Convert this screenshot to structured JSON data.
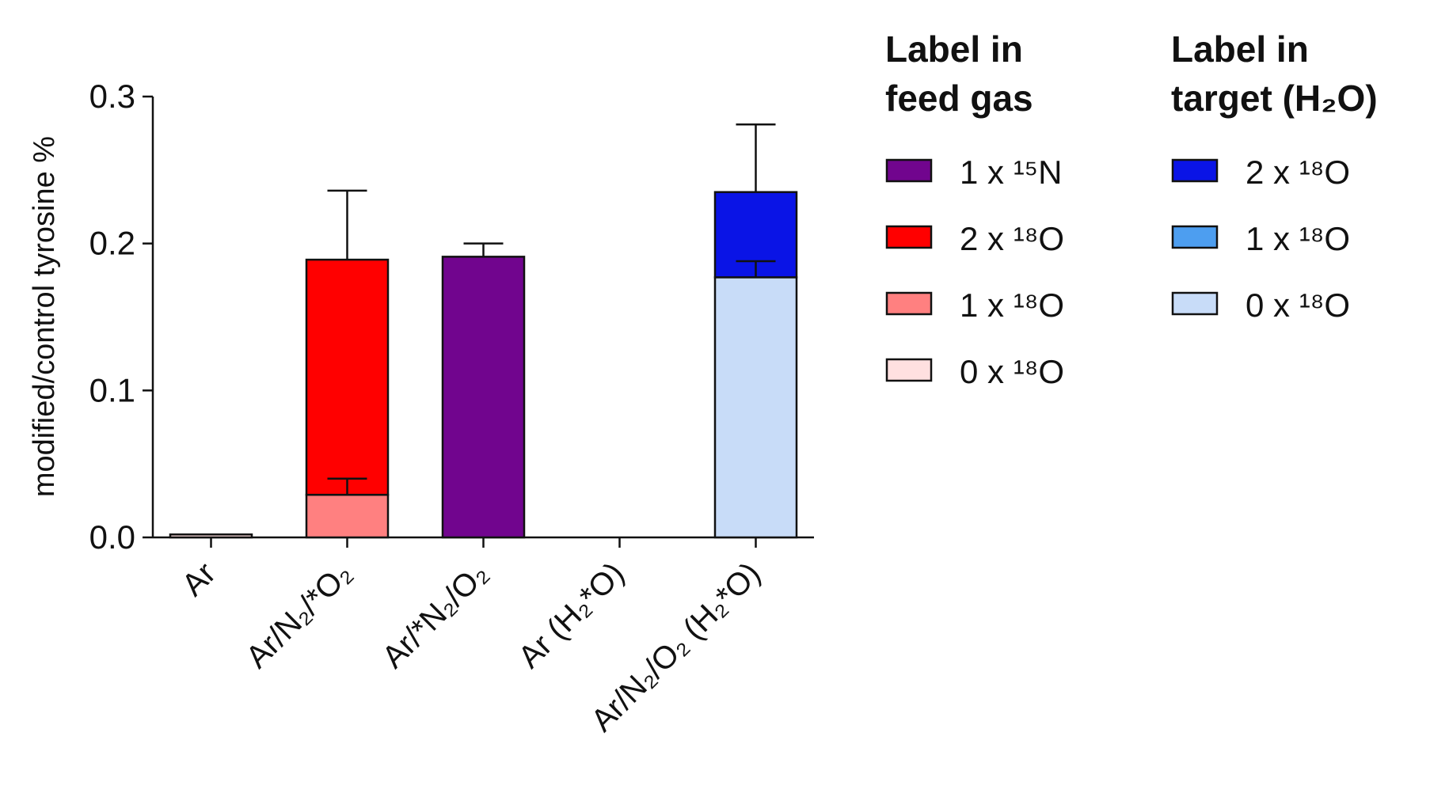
{
  "chart_data": {
    "type": "bar",
    "stacked": true,
    "ylabel": "modified/control tyrosine %",
    "ylim": [
      0,
      0.3
    ],
    "yticks": [
      "0.0",
      "0.1",
      "0.2",
      "0.3"
    ],
    "categories": [
      "Ar",
      "Ar/N₂/*O₂",
      "Ar/*N₂/O₂",
      "Ar (H₂*O)",
      "Ar/N₂/O₂ (H₂*O)"
    ],
    "series": [
      {
        "name": "1 x ¹⁵N",
        "color": "#71058e",
        "values": [
          0,
          0,
          0.191,
          0,
          0
        ],
        "error": [
          0,
          0,
          0.009,
          0,
          0
        ]
      },
      {
        "name": "2 x ¹⁸O",
        "color": "#ff0000",
        "values": [
          0,
          0.16,
          0,
          0,
          0
        ],
        "error": [
          0,
          0.047,
          0,
          0,
          0
        ]
      },
      {
        "name": "1 x ¹⁸O",
        "color": "#ff8080",
        "values": [
          0,
          0.029,
          0,
          0,
          0
        ],
        "error": [
          0,
          0.011,
          0,
          0,
          0
        ]
      },
      {
        "name": "0 x ¹⁸O",
        "color": "#ffe0e0",
        "values": [
          0.002,
          0,
          0,
          0,
          0
        ],
        "error": [
          0,
          0,
          0,
          0,
          0
        ]
      },
      {
        "name": "2 x ¹⁸O",
        "color": "#0a14e6",
        "values": [
          0,
          0,
          0,
          0,
          0.058
        ],
        "error": [
          0,
          0,
          0,
          0,
          0.046
        ]
      },
      {
        "name": "1 x ¹⁸O",
        "color": "#4d9ef0",
        "values": [
          0,
          0,
          0,
          0,
          0
        ],
        "error": [
          0,
          0,
          0,
          0,
          0
        ]
      },
      {
        "name": "0 x ¹⁸O",
        "color": "#c8dcf8",
        "values": [
          0,
          0,
          0,
          0,
          0.177
        ],
        "error": [
          0,
          0,
          0,
          0,
          0.011
        ]
      }
    ],
    "legend": [
      {
        "title_lines": [
          "Label in",
          "feed gas"
        ],
        "items": [
          {
            "label": "1 x ¹⁵N",
            "color": "#71058e"
          },
          {
            "label": "2 x ¹⁸O",
            "color": "#ff0000"
          },
          {
            "label": "1 x ¹⁸O",
            "color": "#ff8080"
          },
          {
            "label": "0 x ¹⁸O",
            "color": "#ffe0e0"
          }
        ]
      },
      {
        "title_lines": [
          "Label in",
          "target (H₂O)"
        ],
        "items": [
          {
            "label": "2 x ¹⁸O",
            "color": "#0a14e6"
          },
          {
            "label": "1 x ¹⁸O",
            "color": "#4d9ef0"
          },
          {
            "label": "0 x ¹⁸O",
            "color": "#c8dcf8"
          }
        ]
      }
    ],
    "legend_position": "right"
  }
}
